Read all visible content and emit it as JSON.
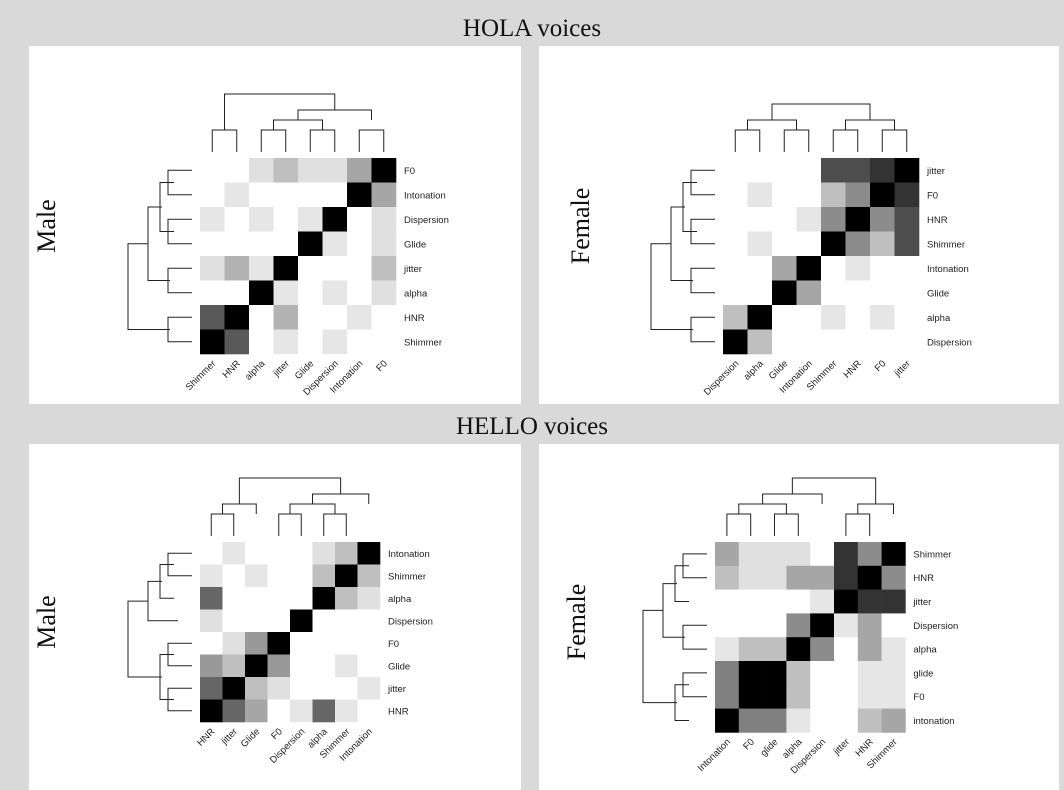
{
  "figure": {
    "sections": [
      {
        "title": "HOLA voices"
      },
      {
        "title": "HELLO voices"
      }
    ]
  },
  "chart_data": [
    {
      "type": "heatmap",
      "section": "HOLA voices",
      "title": "Male",
      "row_labels": [
        "F0",
        "Intonation",
        "Dispersion",
        "Glide",
        "jitter",
        "alpha",
        "HNR",
        "Shimmer"
      ],
      "col_labels": [
        "Shimmer",
        "HNR",
        "alpha",
        "jitter",
        "Glide",
        "Dispersion",
        "Intonation",
        "F0"
      ],
      "values": [
        [
          0,
          0,
          0.12,
          0.25,
          0.12,
          0.12,
          0.35,
          1
        ],
        [
          0,
          0.1,
          0,
          0,
          0,
          0,
          1,
          0.35
        ],
        [
          0.1,
          0,
          0.1,
          0,
          0.1,
          1,
          0,
          0.12
        ],
        [
          0,
          0,
          0,
          0,
          1,
          0.1,
          0,
          0.12
        ],
        [
          0.12,
          0.3,
          0.1,
          1,
          0,
          0,
          0,
          0.25
        ],
        [
          0,
          0,
          1,
          0.1,
          0,
          0.1,
          0,
          0.12
        ],
        [
          0.65,
          1,
          0,
          0.3,
          0,
          0,
          0.1,
          0
        ],
        [
          1,
          0.65,
          0,
          0.1,
          0,
          0.1,
          0,
          0
        ]
      ],
      "row_dendrogram": [
        [
          0,
          1,
          2,
          3
        ],
        [
          4,
          5
        ],
        [
          6,
          7
        ]
      ],
      "col_dendrogram": [
        [
          0,
          1
        ],
        [
          2,
          3,
          4,
          5,
          6,
          7
        ]
      ],
      "grid": false
    },
    {
      "type": "heatmap",
      "section": "HOLA voices",
      "title": "Female",
      "row_labels": [
        "jitter",
        "F0",
        "HNR",
        "Shimmer",
        "Intonation",
        "Glide",
        "alpha",
        "Dispersion"
      ],
      "col_labels": [
        "Dispersion",
        "alpha",
        "Glide",
        "Intonation",
        "Shimmer",
        "HNR",
        "F0",
        "jitter"
      ],
      "values": [
        [
          0,
          0,
          0,
          0,
          0.7,
          0.7,
          0.8,
          1
        ],
        [
          0,
          0.1,
          0,
          0,
          0.25,
          0.45,
          1,
          0.8
        ],
        [
          0,
          0,
          0,
          0.1,
          0.45,
          1,
          0.45,
          0.7
        ],
        [
          0,
          0.1,
          0,
          0,
          1,
          0.45,
          0.25,
          0.7
        ],
        [
          0,
          0,
          0.35,
          1,
          0,
          0.1,
          0,
          0
        ],
        [
          0,
          0,
          1,
          0.35,
          0,
          0,
          0,
          0
        ],
        [
          0.25,
          1,
          0,
          0,
          0.1,
          0,
          0.1,
          0
        ],
        [
          1,
          0.25,
          0,
          0,
          0,
          0,
          0,
          0
        ]
      ],
      "row_dendrogram": [
        [
          0,
          1,
          2,
          3
        ],
        [
          4,
          5
        ],
        [
          6,
          7
        ]
      ],
      "col_dendrogram": [
        [
          0,
          1,
          2,
          3
        ],
        [
          4,
          5,
          6,
          7
        ]
      ],
      "grid": false
    },
    {
      "type": "heatmap",
      "section": "HELLO voices",
      "title": "Male",
      "row_labels": [
        "Intonation",
        "Shimmer",
        "alpha",
        "Dispersion",
        "F0",
        "Glide",
        "jitter",
        "HNR"
      ],
      "col_labels": [
        "HNR",
        "jitter",
        "Glide",
        "F0",
        "Dispersion",
        "alpha",
        "Shimmer",
        "Intonation"
      ],
      "values": [
        [
          0,
          0.1,
          0,
          0,
          0,
          0.12,
          0.25,
          1
        ],
        [
          0.1,
          0,
          0.1,
          0,
          0,
          0.25,
          1,
          0.25
        ],
        [
          0.6,
          0,
          0,
          0,
          0,
          1,
          0.25,
          0.12
        ],
        [
          0.12,
          0,
          0,
          0,
          1,
          0,
          0,
          0
        ],
        [
          0,
          0.12,
          0.4,
          1,
          0,
          0,
          0,
          0
        ],
        [
          0.4,
          0.25,
          1,
          0.4,
          0,
          0,
          0.1,
          0
        ],
        [
          0.6,
          1,
          0.25,
          0.12,
          0,
          0,
          0,
          0.1
        ],
        [
          1,
          0.6,
          0.35,
          0,
          0.1,
          0.6,
          0.1,
          0
        ]
      ],
      "row_dendrogram": [
        [
          0,
          1,
          2
        ],
        [
          3
        ],
        [
          4,
          5,
          6,
          7
        ]
      ],
      "col_dendrogram": [
        [
          0,
          1,
          2
        ],
        [
          3,
          4,
          5,
          6,
          7
        ]
      ],
      "grid": false
    },
    {
      "type": "heatmap",
      "section": "HELLO voices",
      "title": "Female",
      "row_labels": [
        "Shimmer",
        "HNR",
        "jitter",
        "Dispersion",
        "alpha",
        "glide",
        "F0",
        "intonation"
      ],
      "col_labels": [
        "Intonation",
        "F0",
        "glide",
        "alpha",
        "Dispersion",
        "jitter",
        "HNR",
        "Shimmer"
      ],
      "values": [
        [
          0.35,
          0.12,
          0.12,
          0.12,
          0,
          0.8,
          0.45,
          1
        ],
        [
          0.25,
          0.12,
          0.12,
          0.35,
          0.35,
          0.8,
          1,
          0.45
        ],
        [
          0,
          0,
          0,
          0,
          0.1,
          1,
          0.8,
          0.8
        ],
        [
          0,
          0,
          0,
          0.45,
          1,
          0.1,
          0.35,
          0
        ],
        [
          0.1,
          0.25,
          0.25,
          1,
          0.45,
          0,
          0.35,
          0.1
        ],
        [
          0.5,
          1,
          1,
          0.25,
          0,
          0,
          0.1,
          0.1
        ],
        [
          0.5,
          1,
          1,
          0.25,
          0,
          0,
          0.1,
          0.1
        ],
        [
          1,
          0.5,
          0.5,
          0.1,
          0,
          0,
          0.25,
          0.35
        ]
      ],
      "row_dendrogram": [
        [
          0,
          1,
          2
        ],
        [
          3,
          4
        ],
        [
          5,
          6,
          7
        ]
      ],
      "col_dendrogram": [
        [
          0,
          1,
          2,
          3,
          4
        ],
        [
          5,
          6,
          7
        ]
      ],
      "grid": false
    }
  ]
}
